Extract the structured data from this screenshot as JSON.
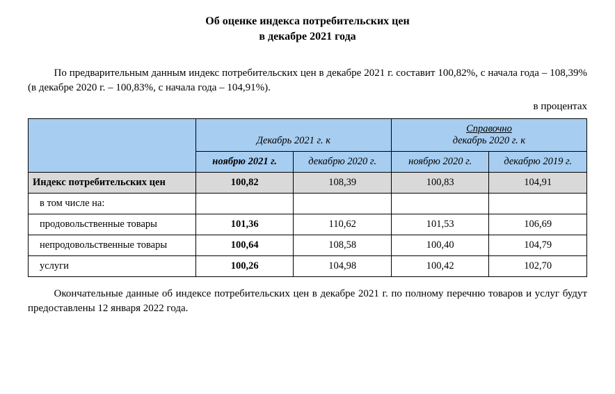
{
  "title": {
    "line1": "Об оценке индекса потребительских цен",
    "line2": "в декабре 2021 года"
  },
  "intro_paragraph": "По предварительным данным индекс потребительских цен в декабре 2021 г. составит 100,82%, с начала года – 108,39% (в декабре 2020 г. – 100,83%, с начала года – 104,91%).",
  "unit_label": "в процентах",
  "table": {
    "header_colors": {
      "bg": "#a7cdf0",
      "highlight_row_bg": "#d9d9d9",
      "border": "#000000",
      "text": "#000000"
    },
    "font": {
      "family": "Times New Roman",
      "header_style": "italic",
      "size_pt": 11
    },
    "col_widths_pct": [
      30,
      17.5,
      17.5,
      17.5,
      17.5
    ],
    "top_headers": {
      "group1": "Декабрь 2021 г. к",
      "group2_line1": "Справочно",
      "group2_line2": "декабрь 2020 г. к"
    },
    "sub_headers": {
      "c1": "ноябрю 2021 г.",
      "c2": "декабрю 2020 г.",
      "c3": "ноябрю 2020 г.",
      "c4": "декабрю 2019 г."
    },
    "rows": [
      {
        "label": "Индекс потребительских цен",
        "values": [
          "100,82",
          "108,39",
          "100,83",
          "104,91"
        ],
        "highlight": true,
        "bold_first": true,
        "indent": false
      },
      {
        "label": "в том числе на:",
        "values": [
          "",
          "",
          "",
          ""
        ],
        "highlight": false,
        "bold_first": false,
        "indent": true
      },
      {
        "label": "продовольственные товары",
        "values": [
          "101,36",
          "110,62",
          "101,53",
          "106,69"
        ],
        "highlight": false,
        "bold_first": true,
        "indent": true
      },
      {
        "label": "непродовольственные товары",
        "values": [
          "100,64",
          "108,58",
          "100,40",
          "104,79"
        ],
        "highlight": false,
        "bold_first": true,
        "indent": true
      },
      {
        "label": "услуги",
        "values": [
          "100,26",
          "104,98",
          "100,42",
          "102,70"
        ],
        "highlight": false,
        "bold_first": true,
        "indent": true
      }
    ]
  },
  "outro_paragraph": "Окончательные данные об индексе потребительских цен в декабре 2021 г. по полному перечню товаров и услуг будут предоставлены 12 января 2022 года."
}
